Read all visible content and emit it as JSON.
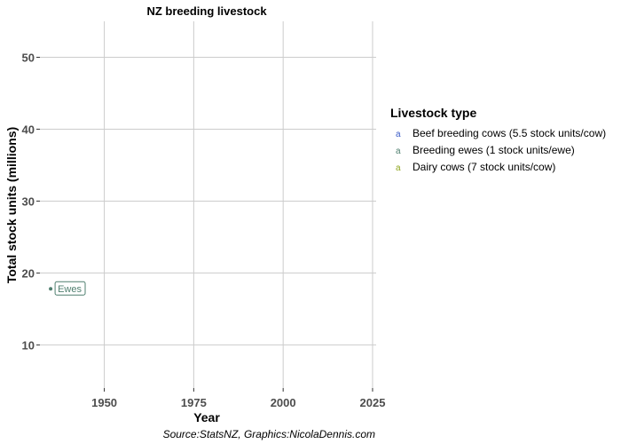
{
  "chart_data": {
    "type": "line",
    "title": "NZ breeding livestock",
    "xlabel": "Year",
    "ylabel": "Total stock units (millions)",
    "caption": "Source:StatsNZ, Graphics:NicolaDennis.com",
    "xlim": [
      1932,
      2026
    ],
    "ylim": [
      4,
      55
    ],
    "x_ticks": [
      1950,
      1975,
      2000,
      2025
    ],
    "x_tick_labels": [
      "1950",
      "1975",
      "2000",
      "2025"
    ],
    "y_ticks": [
      10,
      20,
      30,
      40,
      50
    ],
    "y_tick_labels": [
      "10",
      "20",
      "30",
      "40",
      "50"
    ],
    "grid": true,
    "legend": {
      "title": "Livestock type",
      "placement": "right",
      "key_glyph": "a",
      "entries": [
        {
          "label": "Beef breeding cows (5.5 stock units/cow)",
          "color": "#3a5bc7"
        },
        {
          "label": "Breeding ewes (1 stock units/ewe)",
          "color": "#4f7f6f"
        },
        {
          "label": "Dairy cows (7 stock units/cow)",
          "color": "#8fa61f"
        }
      ]
    },
    "series": [
      {
        "name": "Breeding ewes (1 stock units/ewe)",
        "color": "#4f7f6f",
        "points": [
          {
            "x": 1935,
            "y": 17.8
          }
        ],
        "label": "Ewes"
      }
    ]
  }
}
